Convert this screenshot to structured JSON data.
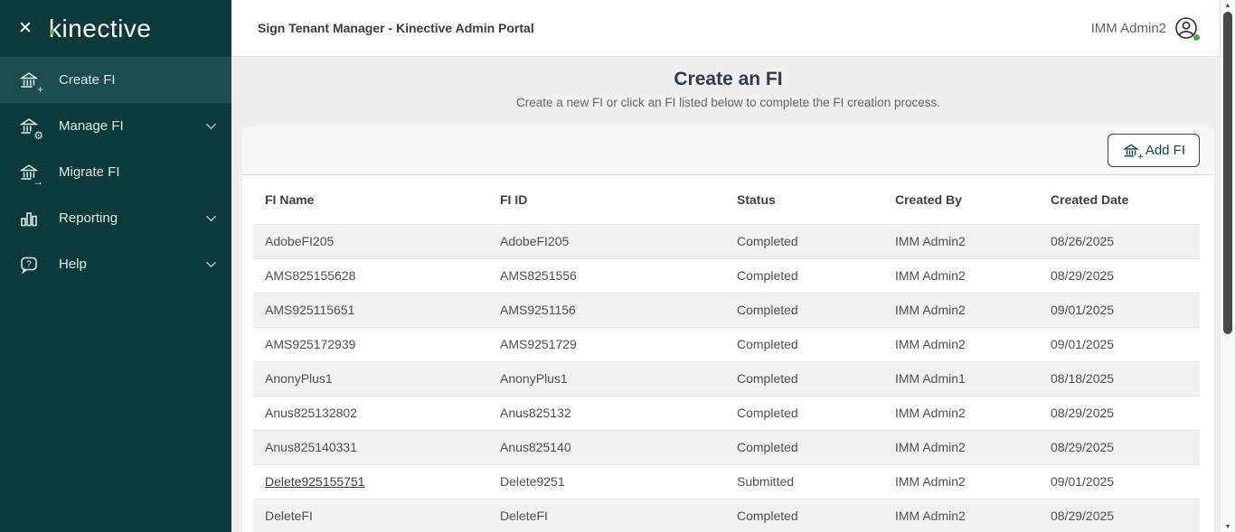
{
  "sidebar": {
    "logo_text": "kinective",
    "items": [
      {
        "label": "Create FI",
        "active": true,
        "chevron": false
      },
      {
        "label": "Manage FI",
        "active": false,
        "chevron": true
      },
      {
        "label": "Migrate FI",
        "active": false,
        "chevron": false
      },
      {
        "label": "Reporting",
        "active": false,
        "chevron": true
      },
      {
        "label": "Help",
        "active": false,
        "chevron": true
      }
    ]
  },
  "topbar": {
    "title": "Sign Tenant Manager - Kinective Admin Portal",
    "user_name": "IMM Admin2"
  },
  "page": {
    "title": "Create an FI",
    "subtitle": "Create a new FI or click an FI listed below to complete the FI creation process."
  },
  "toolbar": {
    "add_fi_label": "Add FI"
  },
  "table": {
    "columns": [
      "FI Name",
      "FI ID",
      "Status",
      "Created By",
      "Created Date"
    ],
    "rows": [
      {
        "fi_name": "AdobeFI205",
        "fi_id": "AdobeFI205",
        "status": "Completed",
        "created_by": "IMM Admin2",
        "created_date": "08/26/2025",
        "link": false
      },
      {
        "fi_name": "AMS825155628",
        "fi_id": "AMS8251556",
        "status": "Completed",
        "created_by": "IMM Admin2",
        "created_date": "08/29/2025",
        "link": false
      },
      {
        "fi_name": "AMS925115651",
        "fi_id": "AMS9251156",
        "status": "Completed",
        "created_by": "IMM Admin2",
        "created_date": "09/01/2025",
        "link": false
      },
      {
        "fi_name": "AMS925172939",
        "fi_id": "AMS9251729",
        "status": "Completed",
        "created_by": "IMM Admin2",
        "created_date": "09/01/2025",
        "link": false
      },
      {
        "fi_name": "AnonyPlus1",
        "fi_id": "AnonyPlus1",
        "status": "Completed",
        "created_by": "IMM Admin1",
        "created_date": "08/18/2025",
        "link": false
      },
      {
        "fi_name": "Anus825132802",
        "fi_id": "Anus825132",
        "status": "Completed",
        "created_by": "IMM Admin2",
        "created_date": "08/29/2025",
        "link": false
      },
      {
        "fi_name": "Anus825140331",
        "fi_id": "Anus825140",
        "status": "Completed",
        "created_by": "IMM Admin2",
        "created_date": "08/29/2025",
        "link": false
      },
      {
        "fi_name": "Delete925155751",
        "fi_id": "Delete9251",
        "status": "Submitted",
        "created_by": "IMM Admin2",
        "created_date": "09/01/2025",
        "link": true
      },
      {
        "fi_name": "DeleteFI",
        "fi_id": "DeleteFI",
        "status": "Completed",
        "created_by": "IMM Admin2",
        "created_date": "08/29/2025",
        "link": false
      }
    ]
  },
  "colors": {
    "sidebar_bg": "#0b3a3d",
    "sidebar_active_bg": "#1d4c4e",
    "brand_green": "#52b84d",
    "button_teal": "#1d4e50",
    "row_stripe": "#f1f1f2"
  }
}
